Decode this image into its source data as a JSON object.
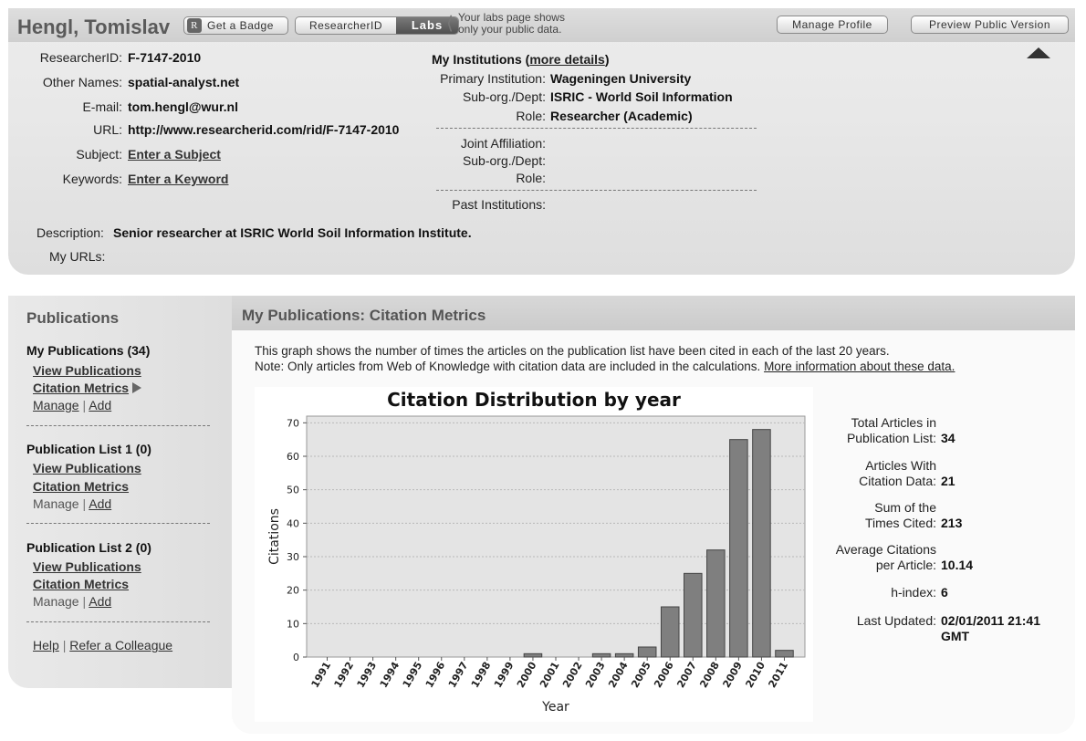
{
  "profile": {
    "name": "Hengl, Tomislav",
    "badge_label": "Get a Badge",
    "badge_icon": "R",
    "researcherid_label": "ResearcherID",
    "labs_label": "Labs",
    "labs_note_line1": "Your labs page shows",
    "labs_note_line2": "only your public data.",
    "manage_label": "Manage Profile",
    "preview_label": "Preview Public Version",
    "fields": {
      "researcherid_label": "ResearcherID:",
      "researcherid_value": "F-7147-2010",
      "other_names_label": "Other Names:",
      "other_names_value": "spatial-analyst.net",
      "email_label": "E-mail:",
      "email_value": "tom.hengl@wur.nl",
      "url_label": "URL:",
      "url_value": "http://www.researcherid.com/rid/F-7147-2010",
      "subject_label": "Subject:",
      "subject_value": "Enter a Subject",
      "keywords_label": "Keywords:",
      "keywords_value": "Enter a Keyword",
      "description_label": "Description:",
      "description_value": "Senior researcher at ISRIC World Soil Information Institute.",
      "urls_label": "My URLs:"
    },
    "institutions": {
      "title": "My Institutions (",
      "more_details": "more details",
      "title_close": ")",
      "primary_label": "Primary Institution:",
      "primary_value": "Wageningen University",
      "suborg_label": "Sub-org./Dept:",
      "suborg_value": "ISRIC - World Soil Information",
      "role_label": "Role:",
      "role_value": "Researcher (Academic)",
      "joint_label": "Joint Affiliation:",
      "joint_suborg_label": "Sub-org./Dept:",
      "joint_role_label": "Role:",
      "past_label": "Past Institutions:"
    }
  },
  "sidebar": {
    "title": "Publications",
    "my_publications": "My Publications (34)",
    "view_publications": "View Publications",
    "citation_metrics": "Citation Metrics",
    "manage": "Manage",
    "add": "Add",
    "separator": "|",
    "list1": "Publication List 1 (0)",
    "list2": "Publication List 2 (0)",
    "help": "Help",
    "refer": "Refer a Colleague"
  },
  "main": {
    "title": "My Publications: Citation Metrics",
    "desc_line1": "This graph shows the number of times the articles on the publication list have been cited in each of the last 20 years.",
    "desc_line2": "Note: Only articles from Web of Knowledge with citation data are included in the calculations.",
    "more_info": "More information about these data."
  },
  "stats": {
    "total_label_1": "Total Articles in",
    "total_label_2": "Publication List:",
    "total_value": "34",
    "with_label_1": "Articles With",
    "with_label_2": "Citation Data:",
    "with_value": "21",
    "sum_label_1": "Sum of the",
    "sum_label_2": "Times Cited:",
    "sum_value": "213",
    "avg_label_1": "Average Citations",
    "avg_label_2": "per Article:",
    "avg_value": "10.14",
    "h_label": "h-index:",
    "h_value": "6",
    "updated_label": "Last Updated:",
    "updated_value_1": "02/01/2011 21:41",
    "updated_value_2": "GMT"
  },
  "chart_data": {
    "type": "bar",
    "title": "Citation Distribution by year",
    "xlabel": "Year",
    "ylabel": "Citations",
    "ylim": [
      0,
      72
    ],
    "yticks": [
      0,
      10,
      20,
      30,
      40,
      50,
      60,
      70
    ],
    "grid": true,
    "categories": [
      "1991",
      "1992",
      "1993",
      "1994",
      "1995",
      "1996",
      "1997",
      "1998",
      "1999",
      "2000",
      "2001",
      "2002",
      "2003",
      "2004",
      "2005",
      "2006",
      "2007",
      "2008",
      "2009",
      "2010",
      "2011"
    ],
    "values": [
      0,
      0,
      0,
      0,
      0,
      0,
      0,
      0,
      0,
      1,
      0,
      0,
      1,
      1,
      3,
      15,
      25,
      32,
      65,
      68,
      2
    ],
    "colors": {
      "bar": "#7f7f7f",
      "plot_bg": "#e4e4e4",
      "grid": "#b8b8b8"
    }
  }
}
